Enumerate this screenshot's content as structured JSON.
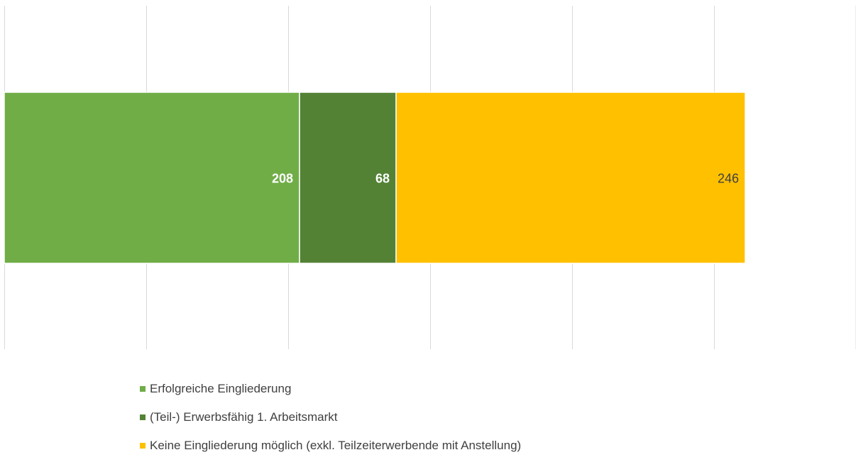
{
  "chart_data": {
    "type": "bar",
    "orientation": "horizontal",
    "stacked": true,
    "title": "",
    "xlabel": "",
    "ylabel": "",
    "categories": [
      ""
    ],
    "xlim": [
      0,
      600
    ],
    "grid": true,
    "tick_labels_visible": false,
    "legend_position": "bottom",
    "series": [
      {
        "name": "Erfolgreiche Eingliederung",
        "values": [
          208
        ],
        "label": "208",
        "color": "#70ad47",
        "label_color": "#ffffff"
      },
      {
        "name": "(Teil-) Erwerbsfähig 1. Arbeitsmarkt",
        "values": [
          68
        ],
        "label": "68",
        "color": "#548235",
        "label_color": "#ffffff"
      },
      {
        "name": "Keine Eingliederung möglich (exkl. Teilzeiterwerbende mit Anstellung)",
        "values": [
          246
        ],
        "label": "246",
        "color": "#ffc000",
        "label_color": "#404040"
      }
    ]
  }
}
